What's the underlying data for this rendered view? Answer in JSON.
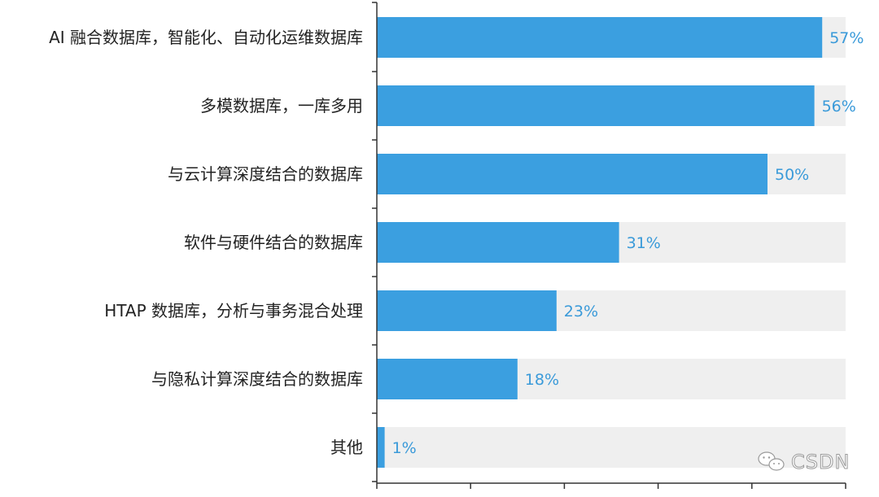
{
  "chart_data": {
    "type": "bar",
    "orientation": "horizontal",
    "categories": [
      "AI 融合数据库，智能化、自动化运维数据库",
      "多模数据库，一库多用",
      "与云计算深度结合的数据库",
      "软件与硬件结合的数据库",
      "HTAP 数据库，分析与事务混合处理",
      "与隐私计算深度结合的数据库",
      "其他"
    ],
    "values": [
      57,
      56,
      50,
      31,
      23,
      18,
      1
    ],
    "value_labels": [
      "57%",
      "56%",
      "50%",
      "31%",
      "23%",
      "18%",
      "1%"
    ],
    "xlim": [
      0,
      60
    ],
    "grid": false,
    "legend": "none",
    "colors": {
      "bar": "#3b9fe0",
      "track": "#efefef",
      "value_label": "#3a9ad9",
      "axis": "#333333",
      "category_label": "#222222"
    }
  },
  "watermark": {
    "icon": "wechat-icon",
    "text": "CSDN"
  }
}
